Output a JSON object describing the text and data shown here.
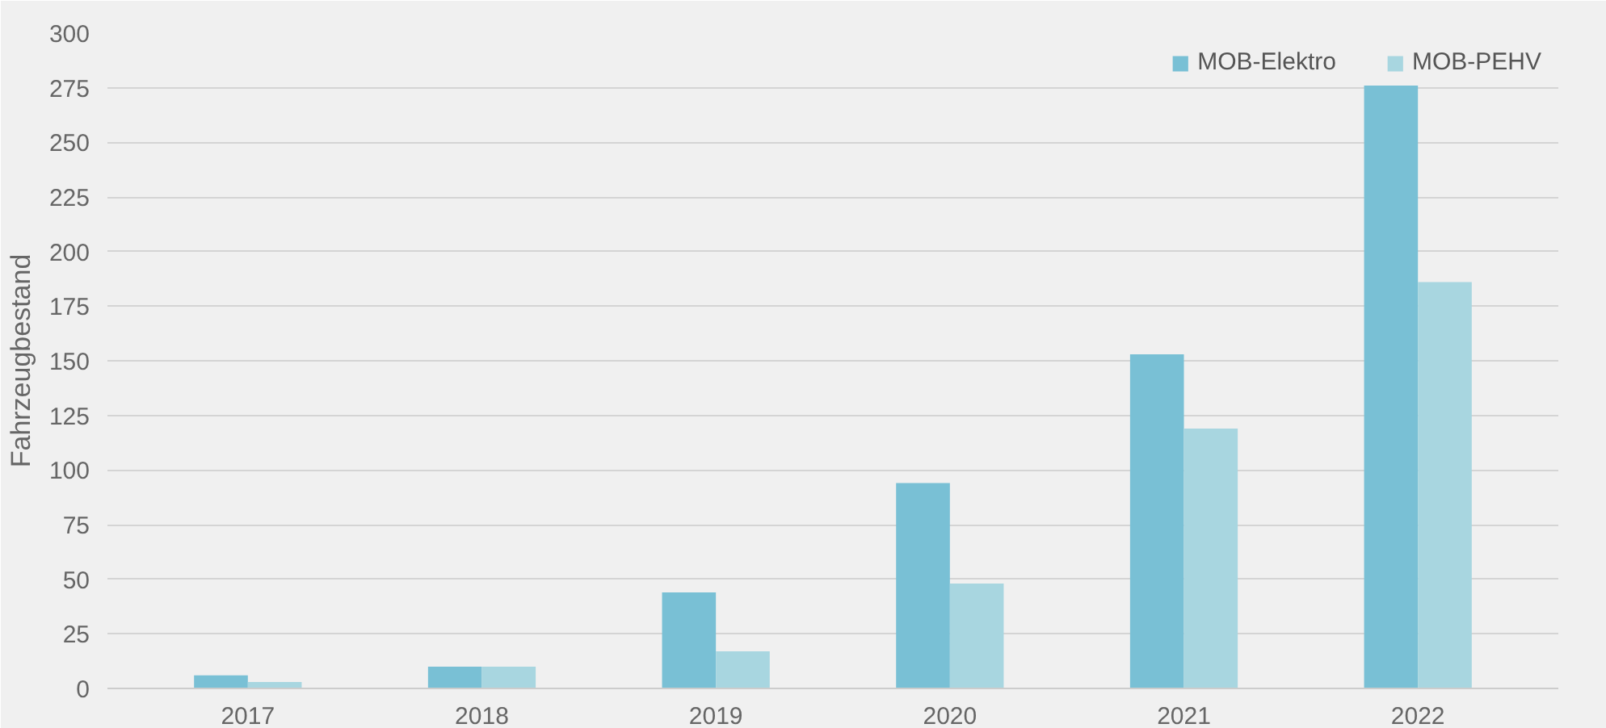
{
  "chart_data": {
    "type": "bar",
    "ylabel": "Fahrzeugbestand",
    "categories": [
      "2017",
      "2018",
      "2019",
      "2020",
      "2021",
      "2022"
    ],
    "series": [
      {
        "name": "MOB-Elektro",
        "color": "#79c0d5",
        "values": [
          6,
          10,
          44,
          94,
          153,
          276
        ]
      },
      {
        "name": "MOB-PEHV",
        "color": "#a8d6e0",
        "values": [
          3,
          10,
          17,
          48,
          119,
          186
        ]
      }
    ],
    "ylim": [
      0,
      300
    ],
    "yticks": [
      0,
      25,
      50,
      75,
      100,
      125,
      150,
      175,
      200,
      225,
      250,
      275,
      300
    ],
    "grid": "y",
    "legend": "top right"
  }
}
